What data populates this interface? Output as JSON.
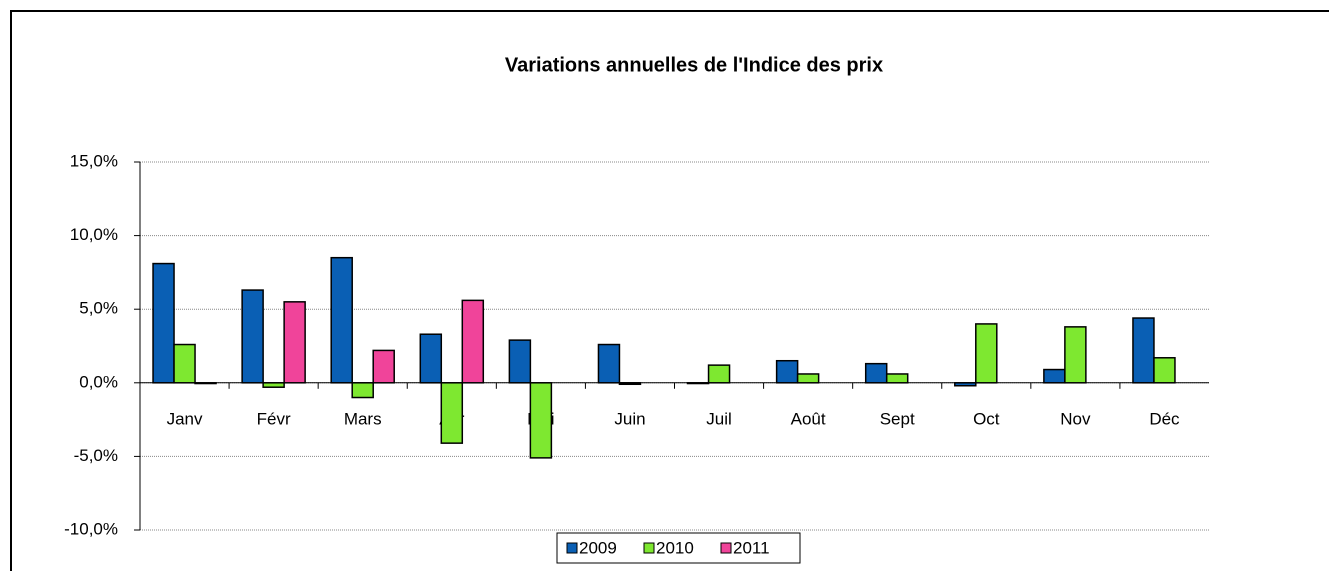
{
  "chart_data": {
    "type": "bar",
    "title": "Variations annuelles de l'Indice des prix",
    "categories": [
      "Janv",
      "Févr",
      "Mars",
      "Avr",
      "Mai",
      "Juin",
      "Juil",
      "Août",
      "Sept",
      "Oct",
      "Nov",
      "Déc"
    ],
    "series": [
      {
        "name": "2009",
        "color": "#0a5fb4",
        "values": [
          8.1,
          6.3,
          8.5,
          3.3,
          2.9,
          2.6,
          -0.05,
          1.5,
          1.3,
          -0.2,
          0.9,
          4.4
        ]
      },
      {
        "name": "2010",
        "color": "#7ee830",
        "values": [
          2.6,
          -0.3,
          -1.0,
          -4.1,
          -5.1,
          -0.1,
          1.2,
          0.6,
          0.6,
          4.0,
          3.8,
          1.7
        ]
      },
      {
        "name": "2011",
        "color": "#f0449a",
        "values": [
          -0.05,
          5.5,
          2.2,
          5.6,
          null,
          null,
          null,
          null,
          null,
          null,
          null,
          null
        ]
      }
    ],
    "ylim": [
      -10,
      15
    ],
    "yticks": [
      {
        "value": -10,
        "label": "-10,0%"
      },
      {
        "value": -5,
        "label": "-5,0%"
      },
      {
        "value": 0,
        "label": "0,0%"
      },
      {
        "value": 5,
        "label": "5,0%"
      },
      {
        "value": 10,
        "label": "10,0%"
      },
      {
        "value": 15,
        "label": "15,0%"
      }
    ],
    "grid": true,
    "legend": "bottom"
  }
}
